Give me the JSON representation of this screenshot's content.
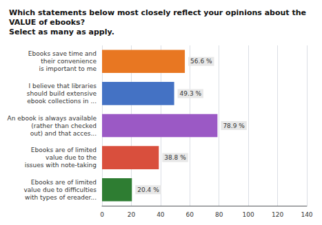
{
  "chart_data": {
    "type": "bar",
    "orientation": "horizontal",
    "title": "Which statements below most closely reflect your opinions about the VALUE of ebooks?\nSelect as many as apply.",
    "categories": [
      "Ebooks save time and\ntheir convenience\nis important to me",
      "I believe that libraries\nshould build extensive\nebook collections in ...",
      "An ebook is always available\n(rather than checked\nout) and that acces...",
      "Ebooks are of limited\nvalue due to the\nissues with note-taking",
      "Ebooks are of limited\nvalue due to difficulties\nwith types of ereader..."
    ],
    "values": [
      56.6,
      49.3,
      78.9,
      38.8,
      20.4
    ],
    "value_labels": [
      "56.6 %",
      "49.3 %",
      "78.9 %",
      "38.8 %",
      "20.4 %"
    ],
    "colors": [
      "#E87722",
      "#4472C4",
      "#9B59C5",
      "#D94F3D",
      "#2E7D32"
    ],
    "xlim": [
      0,
      140
    ],
    "xticks": [
      0,
      20,
      40,
      60,
      80,
      100,
      120,
      140
    ],
    "grid": true,
    "data_labels": true
  }
}
